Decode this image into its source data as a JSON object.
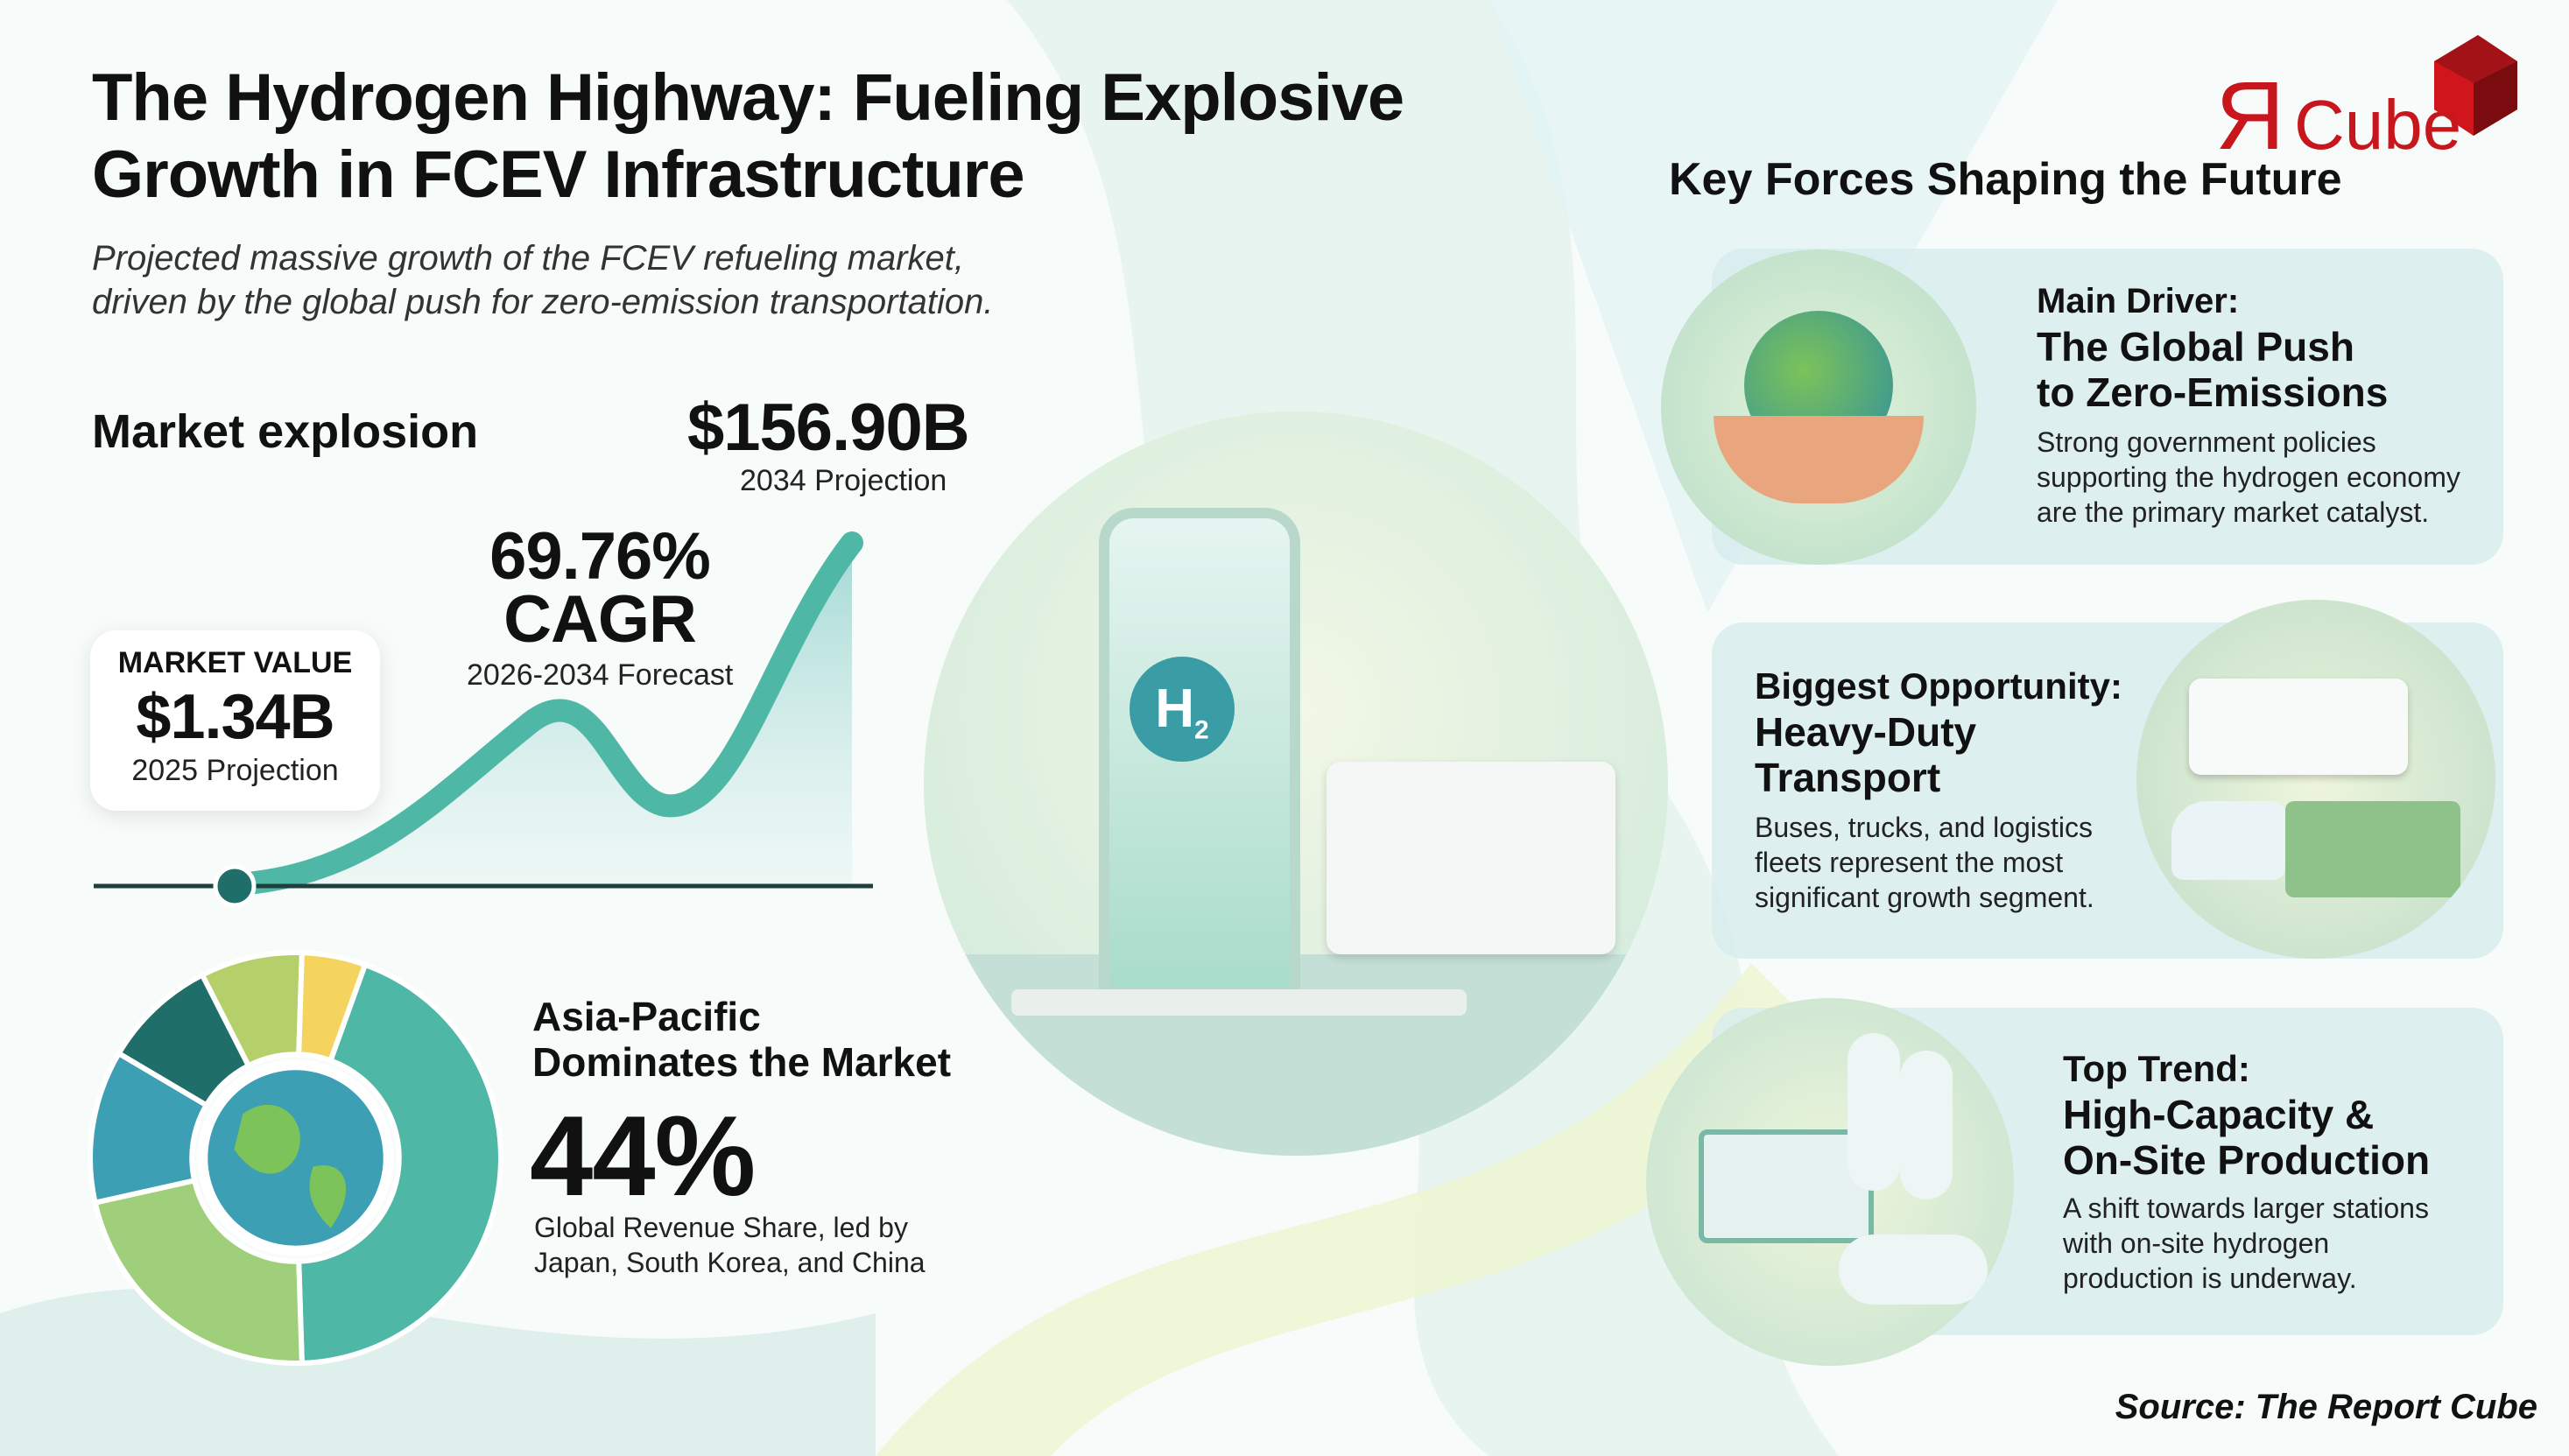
{
  "header": {
    "title_line1": "The Hydrogen Highway: Fueling Explosive",
    "title_line2": "Growth in FCEV Infrastructure",
    "subtitle_line1": "Projected massive growth of the FCEV refueling market,",
    "subtitle_line2": "driven by the global push for zero-emission transportation."
  },
  "logo": {
    "text": "ЯCube",
    "color": "#c8161d"
  },
  "market": {
    "heading": "Market explosion",
    "end_value": "$156.90B",
    "end_label": "2034 Projection",
    "cagr_value": "69.76%",
    "cagr_word": "CAGR",
    "cagr_label": "2026-2034 Forecast",
    "start_title": "MARKET VALUE",
    "start_value": "$1.34B",
    "start_label": "2025 Projection"
  },
  "region": {
    "heading_line1": "Asia-Pacific",
    "heading_line2": "Dominates the Market",
    "share": "44%",
    "share_value": 44,
    "desc_line1": "Global Revenue Share, led by",
    "desc_line2": "Japan, South Korea, and China"
  },
  "center_image": {
    "badge": "H",
    "badge_sub": "2"
  },
  "forces": {
    "heading": "Key Forces Shaping the Future",
    "items": [
      {
        "title_lines": [
          "Main Driver:",
          "The Global Push",
          "to Zero-Emissions"
        ],
        "body_lines": [
          "Strong government policies",
          "supporting the hydrogen economy",
          "are the primary market catalyst."
        ],
        "icon": "globe-in-hands-icon"
      },
      {
        "title_lines": [
          "Biggest Opportunity:",
          "Heavy-Duty",
          "Transport"
        ],
        "body_lines": [
          "Buses, trucks, and logistics",
          "fleets represent the most",
          "significant growth segment."
        ],
        "icon": "trucks-and-buses-icon"
      },
      {
        "title_lines": [
          "Top Trend:",
          "High-Capacity &",
          "On-Site Production"
        ],
        "body_lines": [
          "A shift towards larger stations",
          "with on-site hydrogen",
          "production is underway."
        ],
        "icon": "hydrogen-station-icon"
      }
    ]
  },
  "source": "Source: The Report Cube",
  "colors": {
    "teal": "#3fae9f",
    "dark_teal": "#1f6e6a",
    "light_green": "#9fcf7a",
    "yellow": "#f4d35e",
    "card": "#d7ecee"
  }
}
